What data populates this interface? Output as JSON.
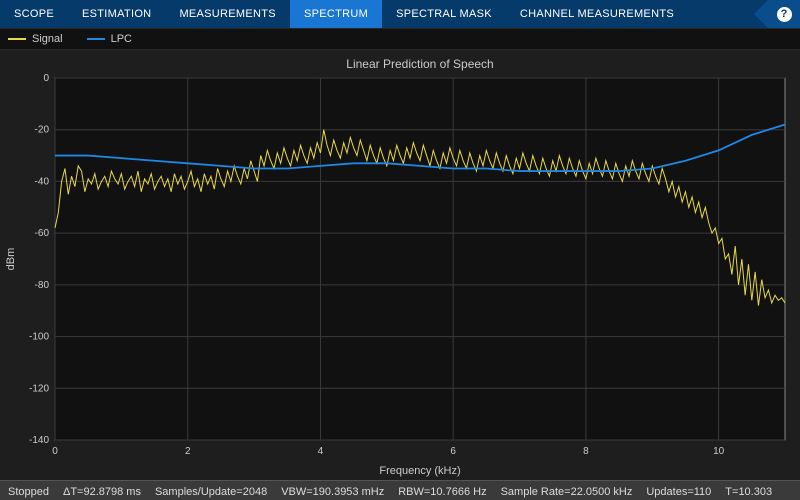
{
  "toolbar": {
    "tabs": [
      {
        "label": "SCOPE",
        "active": false
      },
      {
        "label": "ESTIMATION",
        "active": false
      },
      {
        "label": "MEASUREMENTS",
        "active": false
      },
      {
        "label": "SPECTRUM",
        "active": true
      },
      {
        "label": "SPECTRAL MASK",
        "active": false
      },
      {
        "label": "CHANNEL MEASUREMENTS",
        "active": false
      }
    ],
    "help_tooltip": "?"
  },
  "legend": {
    "items": [
      {
        "name": "Signal",
        "color": "#e8d84a"
      },
      {
        "name": "LPC",
        "color": "#1e88e5"
      }
    ]
  },
  "chart": {
    "type": "line",
    "title": "Linear Prediction of Speech",
    "title_fontsize": 12,
    "title_color": "#cccccc",
    "xlabel": "Frequency (kHz)",
    "ylabel": "dBm",
    "label_fontsize": 11,
    "label_color": "#cccccc",
    "tick_fontsize": 10,
    "tick_color": "#cccccc",
    "background_color": "#1e1e1e",
    "plot_bg": "#111111",
    "grid_color": "#3a3a3a",
    "axis_color": "#888888",
    "xlim": [
      0,
      11
    ],
    "ylim": [
      -140,
      0
    ],
    "xticks": [
      0,
      2,
      4,
      6,
      8,
      10
    ],
    "yticks": [
      0,
      -20,
      -40,
      -60,
      -80,
      -100,
      -120,
      -140
    ],
    "series": [
      {
        "name": "Signal",
        "color": "#e8d84a",
        "line_width": 1,
        "x_step": 0.05,
        "y": [
          -58,
          -52,
          -40,
          -35,
          -45,
          -38,
          -42,
          -34,
          -36,
          -44,
          -39,
          -41,
          -37,
          -43,
          -40,
          -38,
          -42,
          -36,
          -39,
          -41,
          -37,
          -43,
          -40,
          -38,
          -42,
          -36,
          -44,
          -39,
          -41,
          -37,
          -43,
          -40,
          -38,
          -42,
          -39,
          -44,
          -37,
          -41,
          -38,
          -43,
          -40,
          -36,
          -42,
          -39,
          -44,
          -37,
          -41,
          -38,
          -43,
          -35,
          -39,
          -42,
          -36,
          -40,
          -34,
          -38,
          -41,
          -35,
          -39,
          -32,
          -36,
          -40,
          -30,
          -34,
          -28,
          -32,
          -35,
          -29,
          -33,
          -27,
          -31,
          -34,
          -28,
          -32,
          -26,
          -30,
          -33,
          -27,
          -31,
          -25,
          -29,
          -20,
          -26,
          -30,
          -24,
          -28,
          -31,
          -25,
          -29,
          -23,
          -27,
          -30,
          -24,
          -28,
          -32,
          -26,
          -30,
          -33,
          -27,
          -31,
          -34,
          -28,
          -32,
          -26,
          -30,
          -33,
          -27,
          -31,
          -25,
          -29,
          -32,
          -26,
          -30,
          -34,
          -28,
          -32,
          -35,
          -29,
          -33,
          -27,
          -31,
          -34,
          -28,
          -32,
          -35,
          -29,
          -33,
          -36,
          -30,
          -34,
          -28,
          -32,
          -35,
          -29,
          -33,
          -36,
          -30,
          -34,
          -37,
          -31,
          -35,
          -29,
          -33,
          -36,
          -30,
          -34,
          -37,
          -31,
          -35,
          -38,
          -32,
          -36,
          -30,
          -34,
          -37,
          -31,
          -35,
          -38,
          -32,
          -36,
          -39,
          -33,
          -37,
          -31,
          -35,
          -38,
          -32,
          -36,
          -39,
          -33,
          -37,
          -40,
          -34,
          -38,
          -32,
          -36,
          -39,
          -33,
          -37,
          -40,
          -34,
          -38,
          -41,
          -35,
          -39,
          -44,
          -40,
          -46,
          -42,
          -48,
          -44,
          -50,
          -46,
          -52,
          -48,
          -54,
          -50,
          -56,
          -60,
          -58,
          -64,
          -62,
          -70,
          -68,
          -76,
          -65,
          -80,
          -70,
          -84,
          -72,
          -86,
          -75,
          -88,
          -78,
          -85,
          -82,
          -87,
          -84,
          -86,
          -85,
          -87
        ]
      },
      {
        "name": "LPC",
        "color": "#1e88e5",
        "line_width": 1.8,
        "x": [
          0,
          0.5,
          1,
          1.5,
          2,
          2.5,
          3,
          3.5,
          4,
          4.5,
          5,
          5.5,
          6,
          6.5,
          7,
          7.5,
          8,
          8.5,
          9,
          9.5,
          10,
          10.5,
          11
        ],
        "y": [
          -30,
          -30,
          -31,
          -32,
          -33,
          -34,
          -35,
          -35,
          -34,
          -33,
          -33,
          -34,
          -35,
          -35,
          -36,
          -36,
          -36,
          -36,
          -35,
          -32,
          -28,
          -22,
          -18
        ]
      }
    ]
  },
  "status": {
    "state": "Stopped",
    "items": [
      "ΔT=92.8798 ms",
      "Samples/Update=2048",
      "VBW=190.3953 mHz",
      "RBW=10.7666 Hz",
      "Sample Rate=22.0500 kHz",
      "Updates=110",
      "T=10.303"
    ]
  }
}
